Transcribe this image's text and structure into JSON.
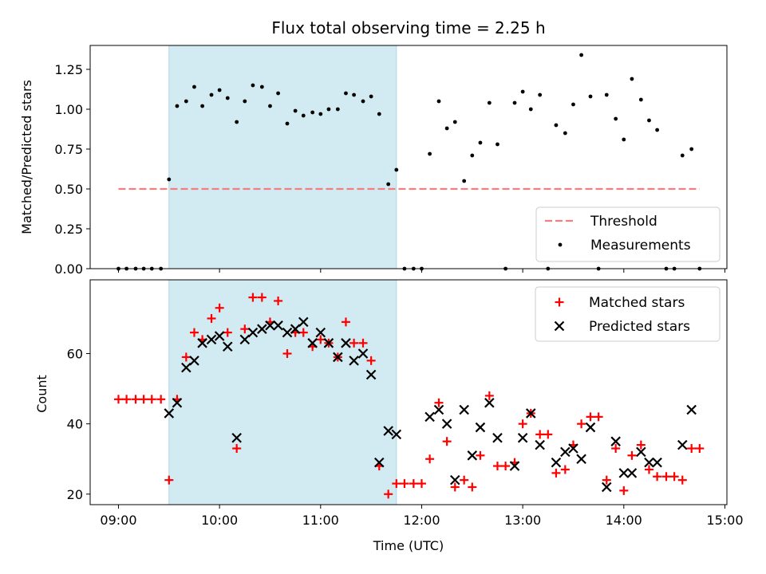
{
  "title": "Flux total observing time = 2.25 h",
  "colors": {
    "shade": "#add8e6",
    "threshold": "#f08080",
    "measurement": "#000000",
    "matched": "#ff0000",
    "predicted": "#000000"
  },
  "chart_data": [
    {
      "type": "scatter",
      "panel": "top",
      "ylabel": "Matched/Predicted stars",
      "xlabel": "",
      "xlim": [
        8.72,
        15.02
      ],
      "ylim": [
        0,
        1.4
      ],
      "yticks": [
        0,
        0.25,
        0.5,
        0.75,
        1.0,
        1.25
      ],
      "ytick_labels": [
        "0.00",
        "0.25",
        "0.50",
        "0.75",
        "1.00",
        "1.25"
      ],
      "xticks": [
        9,
        10,
        11,
        12,
        13,
        14,
        15
      ],
      "shaded_interval": [
        9.5,
        11.75
      ],
      "legend_position": "lower-right",
      "threshold": {
        "name": "Threshold",
        "x": [
          9.0,
          14.75
        ],
        "y": [
          0.5,
          0.5
        ],
        "style": "dashed"
      },
      "series": [
        {
          "name": "Measurements",
          "x": [
            9.0,
            9.08,
            9.17,
            9.25,
            9.33,
            9.42,
            9.5,
            9.58,
            9.67,
            9.75,
            9.83,
            9.92,
            10.0,
            10.08,
            10.17,
            10.25,
            10.33,
            10.42,
            10.5,
            10.58,
            10.67,
            10.75,
            10.83,
            10.92,
            11.0,
            11.08,
            11.17,
            11.25,
            11.33,
            11.42,
            11.5,
            11.58,
            11.67,
            11.75,
            11.83,
            11.92,
            12.0,
            12.08,
            12.17,
            12.25,
            12.33,
            12.42,
            12.5,
            12.58,
            12.67,
            12.75,
            12.83,
            12.92,
            13.0,
            13.08,
            13.17,
            13.25,
            13.33,
            13.42,
            13.5,
            13.58,
            13.67,
            13.75,
            13.83,
            13.92,
            14.0,
            14.08,
            14.17,
            14.25,
            14.33,
            14.42,
            14.5,
            14.58,
            14.67,
            14.75
          ],
          "y": [
            0.0,
            0.0,
            0.0,
            0.0,
            0.0,
            0.0,
            0.56,
            1.02,
            1.05,
            1.14,
            1.02,
            1.09,
            1.12,
            1.07,
            0.92,
            1.05,
            1.15,
            1.14,
            1.02,
            1.1,
            0.91,
            0.99,
            0.96,
            0.98,
            0.97,
            1.0,
            1.0,
            1.1,
            1.09,
            1.05,
            1.08,
            0.97,
            0.53,
            0.62,
            0.0,
            0.0,
            0.0,
            0.72,
            1.05,
            0.88,
            0.92,
            0.55,
            0.71,
            0.79,
            1.04,
            0.78,
            0.0,
            1.04,
            1.11,
            1.0,
            1.09,
            0.0,
            0.9,
            0.85,
            1.03,
            1.34,
            1.08,
            0.0,
            1.09,
            0.94,
            0.81,
            1.19,
            1.06,
            0.93,
            0.87,
            0.0,
            0.0,
            0.71,
            0.75,
            0.0
          ]
        }
      ]
    },
    {
      "type": "scatter",
      "panel": "bottom",
      "xlabel": "Time (UTC)",
      "ylabel": "Count",
      "xlim": [
        8.72,
        15.02
      ],
      "ylim": [
        17,
        81
      ],
      "yticks": [
        20,
        40,
        60
      ],
      "ytick_labels": [
        "20",
        "40",
        "60"
      ],
      "xticks": [
        9,
        10,
        11,
        12,
        13,
        14,
        15
      ],
      "xtick_labels": [
        "09:00",
        "10:00",
        "11:00",
        "12:00",
        "13:00",
        "14:00",
        "15:00"
      ],
      "shaded_interval": [
        9.5,
        11.75
      ],
      "legend_position": "upper-right",
      "series": [
        {
          "name": "Matched stars",
          "marker": "plus",
          "x": [
            9.0,
            9.08,
            9.17,
            9.25,
            9.33,
            9.42,
            9.5,
            9.58,
            9.67,
            9.75,
            9.83,
            9.92,
            10.0,
            10.08,
            10.17,
            10.25,
            10.33,
            10.42,
            10.5,
            10.58,
            10.67,
            10.75,
            10.83,
            10.92,
            11.0,
            11.08,
            11.17,
            11.25,
            11.33,
            11.42,
            11.5,
            11.58,
            11.67,
            11.75,
            11.83,
            11.92,
            12.0,
            12.08,
            12.17,
            12.25,
            12.33,
            12.42,
            12.5,
            12.58,
            12.67,
            12.75,
            12.83,
            12.92,
            13.0,
            13.08,
            13.17,
            13.25,
            13.33,
            13.42,
            13.5,
            13.58,
            13.67,
            13.75,
            13.83,
            13.92,
            14.0,
            14.08,
            14.17,
            14.25,
            14.33,
            14.42,
            14.5,
            14.58,
            14.67,
            14.75
          ],
          "y": [
            47,
            47,
            47,
            47,
            47,
            47,
            24,
            47,
            59,
            66,
            64,
            70,
            73,
            66,
            33,
            67,
            76,
            76,
            69,
            75,
            60,
            66,
            66,
            62,
            64,
            63,
            59,
            69,
            63,
            63,
            58,
            28,
            20,
            23,
            23,
            23,
            23,
            30,
            46,
            35,
            22,
            24,
            22,
            31,
            48,
            28,
            28,
            29,
            40,
            43,
            37,
            37,
            26,
            27,
            34,
            40,
            42,
            42,
            24,
            33,
            21,
            31,
            34,
            27,
            25,
            25,
            25,
            24,
            33,
            33
          ]
        },
        {
          "name": "Predicted stars",
          "marker": "x",
          "x": [
            9.5,
            9.58,
            9.67,
            9.75,
            9.83,
            9.92,
            10.0,
            10.08,
            10.17,
            10.25,
            10.33,
            10.42,
            10.5,
            10.58,
            10.67,
            10.75,
            10.83,
            10.92,
            11.0,
            11.08,
            11.17,
            11.25,
            11.33,
            11.42,
            11.5,
            11.58,
            11.67,
            11.75,
            12.08,
            12.17,
            12.25,
            12.33,
            12.42,
            12.5,
            12.58,
            12.67,
            12.75,
            12.92,
            13.0,
            13.08,
            13.17,
            13.33,
            13.42,
            13.5,
            13.58,
            13.67,
            13.83,
            13.92,
            14.0,
            14.08,
            14.17,
            14.25,
            14.33,
            14.58,
            14.67
          ],
          "y": [
            43,
            46,
            56,
            58,
            63,
            64,
            65,
            62,
            36,
            64,
            66,
            67,
            68,
            68,
            66,
            67,
            69,
            63,
            66,
            63,
            59,
            63,
            58,
            60,
            54,
            29,
            38,
            37,
            42,
            44,
            40,
            24,
            44,
            31,
            39,
            46,
            36,
            28,
            36,
            43,
            34,
            29,
            32,
            33,
            30,
            39,
            22,
            35,
            26,
            26,
            32,
            29,
            29,
            34,
            44
          ]
        }
      ]
    }
  ]
}
